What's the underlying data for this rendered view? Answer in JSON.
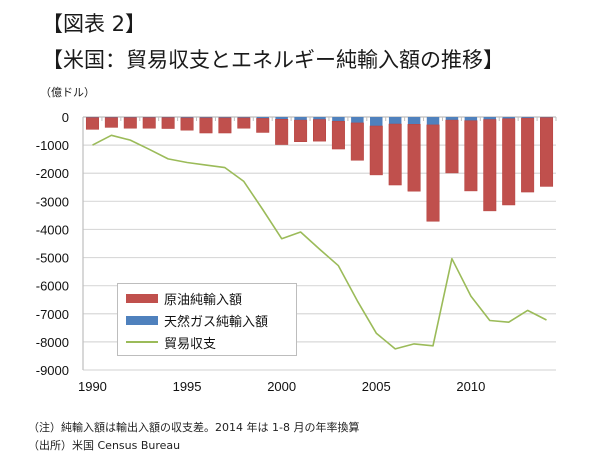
{
  "header": {
    "figure_label": "【図表 2】",
    "title": "【米国：貿易収支とエネルギー純輸入額の推移】",
    "unit": "（億ドル）"
  },
  "footnotes": {
    "note": "（注）純輸入額は輸出入額の収支差。2014 年は 1-8 月の年率換算",
    "source": "（出所）米国 Census Bureau"
  },
  "colors": {
    "crude_oil": "#c0504d",
    "natural_gas": "#4f81bd",
    "trade_balance": "#9bbb59",
    "grid": "#d9d9d9",
    "axis": "#bfbfbf"
  },
  "chart_data": {
    "type": "bar",
    "subtype": "stacked-bar-with-line",
    "title": "米国：貿易収支とエネルギー純輸入額の推移",
    "xlabel": "",
    "ylabel": "億ドル",
    "ylim": [
      -9000,
      0
    ],
    "yticks": [
      0,
      -1000,
      -2000,
      -3000,
      -4000,
      -5000,
      -6000,
      -7000,
      -8000,
      -9000
    ],
    "ytick_labels": [
      "0",
      "-1000",
      "-2000",
      "-3000",
      "-4000",
      "-5000",
      "-6000",
      "-7000",
      "-8000",
      "-9000"
    ],
    "xtick_labels": [
      "1990",
      "1995",
      "2000",
      "2005",
      "2010"
    ],
    "grid": true,
    "legend_position": "bottom-left",
    "categories": [
      1990,
      1991,
      1992,
      1993,
      1994,
      1995,
      1996,
      1997,
      1998,
      1999,
      2000,
      2001,
      2002,
      2003,
      2004,
      2005,
      2006,
      2007,
      2008,
      2009,
      2010,
      2011,
      2012,
      2013,
      2014
    ],
    "series": [
      {
        "name": "原油純輸入額",
        "kind": "bar",
        "values": [
          -420,
          -350,
          -380,
          -380,
          -390,
          -440,
          -540,
          -540,
          -370,
          -500,
          -900,
          -770,
          -770,
          -990,
          -1330,
          -1740,
          -2170,
          -2380,
          -3430,
          -1880,
          -2500,
          -3250,
          -3070,
          -2630,
          -2450
        ]
      },
      {
        "name": "天然ガス純輸入額",
        "kind": "bar",
        "values": [
          -20,
          -20,
          -20,
          -20,
          -20,
          -30,
          -30,
          -30,
          -30,
          -50,
          -80,
          -110,
          -90,
          -150,
          -210,
          -320,
          -250,
          -260,
          -280,
          -110,
          -130,
          -90,
          -60,
          -40,
          -20
        ]
      },
      {
        "name": "貿易収支",
        "kind": "line",
        "values": [
          -1000,
          -650,
          -820,
          -1150,
          -1490,
          -1620,
          -1710,
          -1800,
          -2290,
          -3290,
          -4330,
          -4090,
          -4700,
          -5290,
          -6540,
          -7690,
          -8250,
          -8070,
          -8140,
          -5040,
          -6370,
          -7240,
          -7300,
          -6880,
          -7220
        ]
      }
    ]
  }
}
